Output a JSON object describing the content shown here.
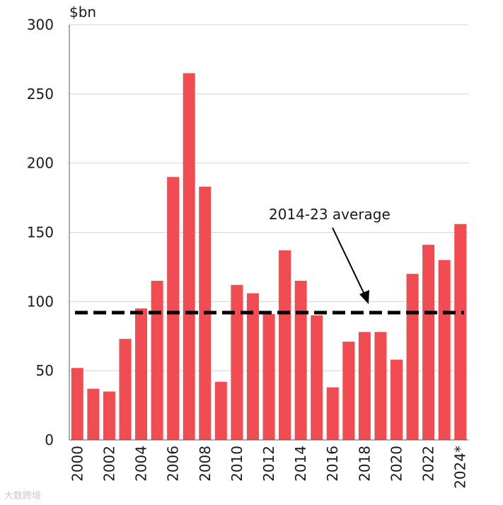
{
  "chart_data": {
    "type": "bar",
    "unit_label": "$bn",
    "categories": [
      "2000",
      "2001",
      "2002",
      "2003",
      "2004",
      "2005",
      "2006",
      "2007",
      "2008",
      "2009",
      "2010",
      "2011",
      "2012",
      "2013",
      "2014",
      "2015",
      "2016",
      "2017",
      "2018",
      "2019",
      "2020",
      "2021",
      "2022",
      "2023",
      "2024*"
    ],
    "x_tick_labels": [
      "2000",
      "2002",
      "2004",
      "2006",
      "2008",
      "2010",
      "2012",
      "2014",
      "2016",
      "2018",
      "2020",
      "2022",
      "2024*"
    ],
    "values": [
      52,
      37,
      35,
      73,
      95,
      115,
      190,
      265,
      183,
      42,
      112,
      106,
      91,
      137,
      115,
      90,
      38,
      71,
      78,
      78,
      58,
      120,
      141,
      130,
      156
    ],
    "ylim": [
      0,
      300
    ],
    "yticks": [
      0,
      50,
      100,
      150,
      200,
      250,
      300
    ],
    "average": {
      "label": "2014-23 average",
      "value": 92
    },
    "colors": {
      "bar": "#f04c52",
      "average_line": "#000000"
    }
  },
  "watermark": "大数跨境"
}
